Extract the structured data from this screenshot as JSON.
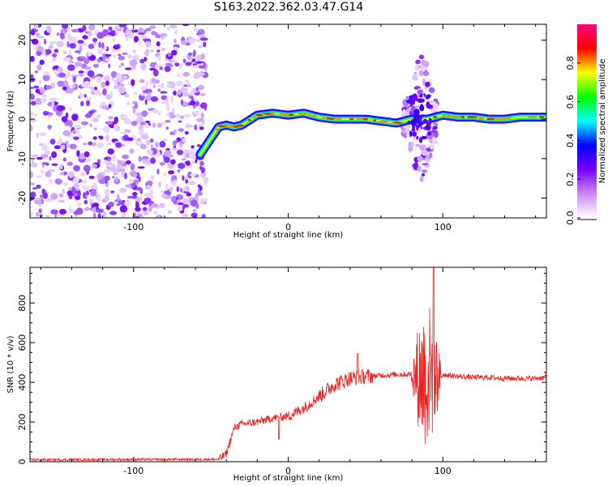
{
  "title": "S163.2022.362.03.47.G14",
  "chart_data": [
    {
      "type": "heatmap",
      "title": "S163.2022.362.03.47.G14",
      "xlabel": "Height of straight line (km)",
      "ylabel": "Frequency (Hz)",
      "xlim": [
        -167,
        167
      ],
      "ylim": [
        -25,
        24
      ],
      "xticks": [
        -100,
        0,
        100
      ],
      "yticks": [
        -20,
        -10,
        0,
        10,
        20
      ],
      "colorbar": {
        "label": "Normalized spectral amplitude",
        "range": [
          0,
          1
        ],
        "ticks": [
          "0.0",
          "0.2",
          "0.4",
          "0.6",
          "0.8"
        ],
        "colors": [
          "#ffffff",
          "#cc88ff",
          "#7700ff",
          "#0000ff",
          "#00ffff",
          "#00ff00",
          "#ffff00",
          "#ff0000",
          "#ff0080"
        ]
      },
      "ridge": {
        "x": [
          -57,
          -45,
          -40,
          -35,
          -30,
          -20,
          -10,
          0,
          10,
          20,
          30,
          40,
          50,
          60,
          70,
          75,
          80,
          85,
          90,
          95,
          100,
          110,
          120,
          130,
          140,
          150,
          160,
          167
        ],
        "frequency": [
          -9,
          -2,
          -1.5,
          -2,
          -1.5,
          1,
          1.5,
          1,
          1.5,
          0.5,
          0,
          0,
          0,
          -0.5,
          -1,
          -0.5,
          0,
          0,
          0,
          0.5,
          1,
          0.5,
          0.5,
          0,
          0,
          0.5,
          0.5,
          0.5
        ]
      },
      "noise_region_x": [
        -167,
        -57
      ],
      "scintillation_region_x": [
        74,
        96
      ]
    },
    {
      "type": "line",
      "xlabel": "Height of straight line (km)",
      "ylabel": "SNR (10 * v/v)",
      "xlim": [
        -167,
        167
      ],
      "ylim": [
        0,
        980
      ],
      "xticks": [
        -100,
        0,
        100
      ],
      "yticks": [
        0,
        200,
        400,
        600,
        800
      ],
      "color": "#ee2222",
      "envelope": {
        "x": [
          -167,
          -45,
          -40,
          -35,
          -30,
          -20,
          -10,
          0,
          10,
          20,
          30,
          40,
          50,
          60,
          70,
          80,
          85,
          90,
          95,
          100,
          110,
          120,
          130,
          140,
          150,
          160,
          167
        ],
        "snr": [
          10,
          12,
          40,
          170,
          190,
          200,
          220,
          230,
          270,
          330,
          390,
          420,
          430,
          435,
          440,
          440,
          430,
          440,
          430,
          440,
          430,
          425,
          425,
          420,
          420,
          420,
          425
        ]
      },
      "scintillation_region_x": [
        79,
        100
      ],
      "peak_snr": 980
    }
  ]
}
